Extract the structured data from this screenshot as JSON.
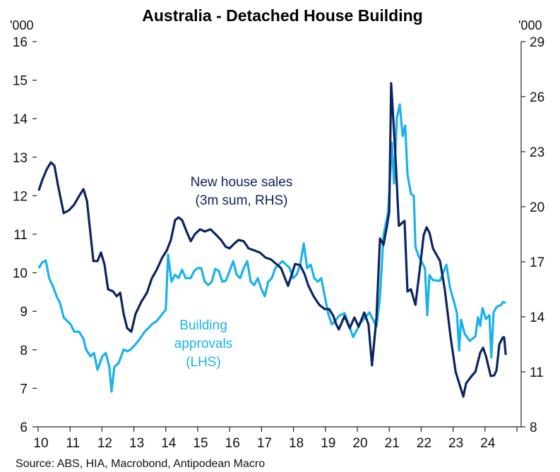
{
  "chart_data": {
    "type": "line",
    "title": "Australia - Detached House Building",
    "left_unit": "'000",
    "right_unit": "'000",
    "source": "Source: ABS, HIA, Macrobond, Antipodean Macro",
    "x_ticks": [
      "10",
      "11",
      "12",
      "13",
      "14",
      "15",
      "16",
      "17",
      "18",
      "19",
      "20",
      "21",
      "22",
      "23",
      "24"
    ],
    "xlim": [
      10,
      25.1
    ],
    "y_left": {
      "ticks": [
        6,
        7,
        8,
        9,
        10,
        11,
        12,
        13,
        14,
        15,
        16
      ],
      "lim": [
        6,
        16
      ]
    },
    "y_right": {
      "ticks": [
        8,
        11,
        14,
        17,
        20,
        23,
        26,
        29
      ],
      "lim": [
        8,
        29
      ]
    },
    "grid": false,
    "series": [
      {
        "name": "Building approvals (LHS)",
        "label_lines": [
          "Building",
          "approvals",
          "(LHS)"
        ],
        "axis": "left",
        "color": "#1ab2ea",
        "points": [
          [
            10.02,
            10.12
          ],
          [
            10.13,
            10.27
          ],
          [
            10.24,
            10.32
          ],
          [
            10.35,
            9.85
          ],
          [
            10.46,
            9.66
          ],
          [
            10.58,
            9.39
          ],
          [
            10.69,
            9.2
          ],
          [
            10.8,
            8.84
          ],
          [
            10.91,
            8.75
          ],
          [
            11.02,
            8.66
          ],
          [
            11.13,
            8.47
          ],
          [
            11.28,
            8.47
          ],
          [
            11.42,
            8.29
          ],
          [
            11.5,
            8.01
          ],
          [
            11.64,
            7.83
          ],
          [
            11.75,
            7.92
          ],
          [
            11.86,
            7.48
          ],
          [
            12.01,
            7.83
          ],
          [
            12.12,
            7.92
          ],
          [
            12.23,
            7.56
          ],
          [
            12.3,
            6.92
          ],
          [
            12.39,
            7.56
          ],
          [
            12.52,
            7.65
          ],
          [
            12.68,
            8.01
          ],
          [
            12.79,
            7.96
          ],
          [
            12.9,
            8.01
          ],
          [
            13.05,
            8.14
          ],
          [
            13.19,
            8.29
          ],
          [
            13.34,
            8.47
          ],
          [
            13.45,
            8.56
          ],
          [
            13.56,
            8.66
          ],
          [
            13.72,
            8.75
          ],
          [
            13.89,
            8.93
          ],
          [
            14.0,
            9.04
          ],
          [
            14.07,
            10.47
          ],
          [
            14.18,
            9.77
          ],
          [
            14.29,
            9.95
          ],
          [
            14.4,
            9.86
          ],
          [
            14.51,
            10.08
          ],
          [
            14.62,
            9.86
          ],
          [
            14.78,
            9.86
          ],
          [
            14.89,
            10.05
          ],
          [
            15.0,
            10.12
          ],
          [
            15.11,
            10.12
          ],
          [
            15.22,
            9.77
          ],
          [
            15.33,
            9.68
          ],
          [
            15.44,
            9.77
          ],
          [
            15.55,
            10.1
          ],
          [
            15.66,
            10.05
          ],
          [
            15.77,
            9.77
          ],
          [
            15.88,
            9.79
          ],
          [
            16.0,
            10.05
          ],
          [
            16.11,
            10.3
          ],
          [
            16.22,
            9.95
          ],
          [
            16.33,
            9.86
          ],
          [
            16.44,
            10.12
          ],
          [
            16.55,
            10.3
          ],
          [
            16.66,
            9.77
          ],
          [
            16.77,
            9.68
          ],
          [
            16.88,
            9.86
          ],
          [
            16.99,
            9.59
          ],
          [
            17.1,
            9.39
          ],
          [
            17.21,
            9.77
          ],
          [
            17.32,
            9.86
          ],
          [
            17.43,
            10.12
          ],
          [
            17.54,
            10.21
          ],
          [
            17.65,
            10.3
          ],
          [
            17.77,
            10.21
          ],
          [
            17.88,
            10.12
          ],
          [
            17.99,
            9.86
          ],
          [
            18.1,
            9.95
          ],
          [
            18.21,
            10.21
          ],
          [
            18.32,
            10.76
          ],
          [
            18.43,
            10.12
          ],
          [
            18.54,
            10.21
          ],
          [
            18.65,
            9.86
          ],
          [
            18.76,
            9.77
          ],
          [
            18.87,
            9.86
          ],
          [
            18.98,
            9.39
          ],
          [
            19.09,
            8.93
          ],
          [
            19.2,
            8.66
          ],
          [
            19.31,
            8.75
          ],
          [
            19.42,
            8.88
          ],
          [
            19.6,
            8.95
          ],
          [
            19.87,
            8.33
          ],
          [
            20.1,
            8.7
          ],
          [
            20.38,
            8.97
          ],
          [
            20.6,
            8.6
          ],
          [
            20.71,
            9.39
          ],
          [
            20.82,
            10.98
          ],
          [
            20.97,
            11.59
          ],
          [
            21.08,
            13.38
          ],
          [
            21.15,
            12.32
          ],
          [
            21.24,
            14.02
          ],
          [
            21.33,
            14.37
          ],
          [
            21.42,
            13.55
          ],
          [
            21.5,
            13.82
          ],
          [
            21.57,
            12.56
          ],
          [
            21.68,
            12.05
          ],
          [
            21.77,
            12.0
          ],
          [
            21.82,
            10.67
          ],
          [
            21.92,
            10.43
          ],
          [
            22.12,
            10.12
          ],
          [
            22.19,
            8.9
          ],
          [
            22.26,
            9.94
          ],
          [
            22.37,
            9.81
          ],
          [
            22.59,
            9.79
          ],
          [
            22.79,
            10.21
          ],
          [
            22.9,
            9.63
          ],
          [
            23.12,
            8.97
          ],
          [
            23.19,
            7.98
          ],
          [
            23.25,
            8.78
          ],
          [
            23.36,
            8.42
          ],
          [
            23.52,
            8.23
          ],
          [
            23.7,
            8.35
          ],
          [
            23.78,
            8.84
          ],
          [
            23.85,
            8.62
          ],
          [
            23.92,
            9.08
          ],
          [
            24.03,
            8.8
          ],
          [
            24.14,
            8.9
          ],
          [
            24.2,
            7.8
          ],
          [
            24.27,
            8.97
          ],
          [
            24.36,
            9.11
          ],
          [
            24.51,
            9.17
          ],
          [
            24.56,
            9.24
          ],
          [
            24.65,
            9.22
          ]
        ]
      },
      {
        "name": "New house sales (3m sum, RHS)",
        "label_lines": [
          "New house sales",
          "(3m sum, RHS)"
        ],
        "axis": "right",
        "color": "#0b2462",
        "points": [
          [
            10.02,
            20.88
          ],
          [
            10.13,
            21.46
          ],
          [
            10.27,
            22.04
          ],
          [
            10.4,
            22.42
          ],
          [
            10.51,
            22.23
          ],
          [
            10.62,
            21.19
          ],
          [
            10.8,
            19.65
          ],
          [
            10.97,
            19.81
          ],
          [
            11.13,
            20.12
          ],
          [
            11.28,
            20.58
          ],
          [
            11.42,
            20.96
          ],
          [
            11.53,
            20.31
          ],
          [
            11.73,
            17.04
          ],
          [
            11.86,
            17.04
          ],
          [
            11.97,
            17.5
          ],
          [
            12.08,
            16.85
          ],
          [
            12.19,
            15.5
          ],
          [
            12.35,
            15.38
          ],
          [
            12.46,
            15.12
          ],
          [
            12.57,
            15.31
          ],
          [
            12.68,
            14.15
          ],
          [
            12.79,
            13.38
          ],
          [
            12.92,
            13.19
          ],
          [
            13.05,
            14.15
          ],
          [
            13.23,
            14.81
          ],
          [
            13.41,
            15.31
          ],
          [
            13.56,
            16.08
          ],
          [
            13.72,
            16.58
          ],
          [
            13.89,
            17.23
          ],
          [
            14.03,
            17.62
          ],
          [
            14.16,
            18.19
          ],
          [
            14.29,
            19.27
          ],
          [
            14.4,
            19.42
          ],
          [
            14.51,
            19.27
          ],
          [
            14.65,
            18.65
          ],
          [
            14.78,
            18.12
          ],
          [
            14.91,
            18.5
          ],
          [
            15.07,
            18.77
          ],
          [
            15.22,
            18.65
          ],
          [
            15.4,
            18.77
          ],
          [
            15.58,
            18.46
          ],
          [
            15.73,
            18.19
          ],
          [
            15.88,
            17.81
          ],
          [
            16.0,
            17.73
          ],
          [
            16.15,
            18.0
          ],
          [
            16.28,
            18.19
          ],
          [
            16.44,
            18.12
          ],
          [
            16.59,
            17.73
          ],
          [
            16.77,
            17.62
          ],
          [
            16.95,
            17.5
          ],
          [
            17.12,
            17.23
          ],
          [
            17.3,
            17.12
          ],
          [
            17.48,
            16.85
          ],
          [
            17.61,
            16.65
          ],
          [
            17.74,
            16.08
          ],
          [
            17.83,
            15.69
          ],
          [
            17.94,
            16.27
          ],
          [
            18.05,
            16.88
          ],
          [
            18.21,
            16.81
          ],
          [
            18.34,
            16.35
          ],
          [
            18.47,
            15.69
          ],
          [
            18.63,
            15.12
          ],
          [
            18.81,
            14.65
          ],
          [
            18.98,
            14.42
          ],
          [
            19.12,
            14.42
          ],
          [
            19.25,
            14.04
          ],
          [
            19.34,
            13.58
          ],
          [
            19.42,
            13.31
          ],
          [
            19.6,
            14.04
          ],
          [
            19.76,
            13.38
          ],
          [
            19.91,
            13.96
          ],
          [
            20.04,
            13.46
          ],
          [
            20.22,
            14.23
          ],
          [
            20.35,
            13.58
          ],
          [
            20.46,
            11.35
          ],
          [
            20.6,
            13.96
          ],
          [
            20.71,
            18.27
          ],
          [
            20.82,
            17.92
          ],
          [
            20.93,
            18.96
          ],
          [
            21.0,
            19.73
          ],
          [
            21.06,
            26.73
          ],
          [
            21.19,
            22.92
          ],
          [
            21.3,
            18.96
          ],
          [
            21.48,
            19.23
          ],
          [
            21.57,
            15.38
          ],
          [
            21.68,
            15.5
          ],
          [
            21.82,
            14.65
          ],
          [
            21.97,
            16.77
          ],
          [
            22.08,
            18.46
          ],
          [
            22.17,
            18.88
          ],
          [
            22.26,
            18.58
          ],
          [
            22.37,
            17.73
          ],
          [
            22.59,
            17.04
          ],
          [
            22.74,
            15.5
          ],
          [
            22.92,
            12.92
          ],
          [
            23.08,
            11.0
          ],
          [
            23.19,
            10.38
          ],
          [
            23.32,
            9.65
          ],
          [
            23.41,
            10.38
          ],
          [
            23.58,
            10.77
          ],
          [
            23.7,
            11.0
          ],
          [
            23.85,
            12.04
          ],
          [
            23.94,
            12.31
          ],
          [
            24.03,
            11.85
          ],
          [
            24.18,
            10.77
          ],
          [
            24.29,
            10.81
          ],
          [
            24.36,
            11.08
          ],
          [
            24.45,
            12.5
          ],
          [
            24.56,
            12.88
          ],
          [
            24.6,
            12.88
          ],
          [
            24.65,
            11.92
          ]
        ]
      }
    ]
  }
}
